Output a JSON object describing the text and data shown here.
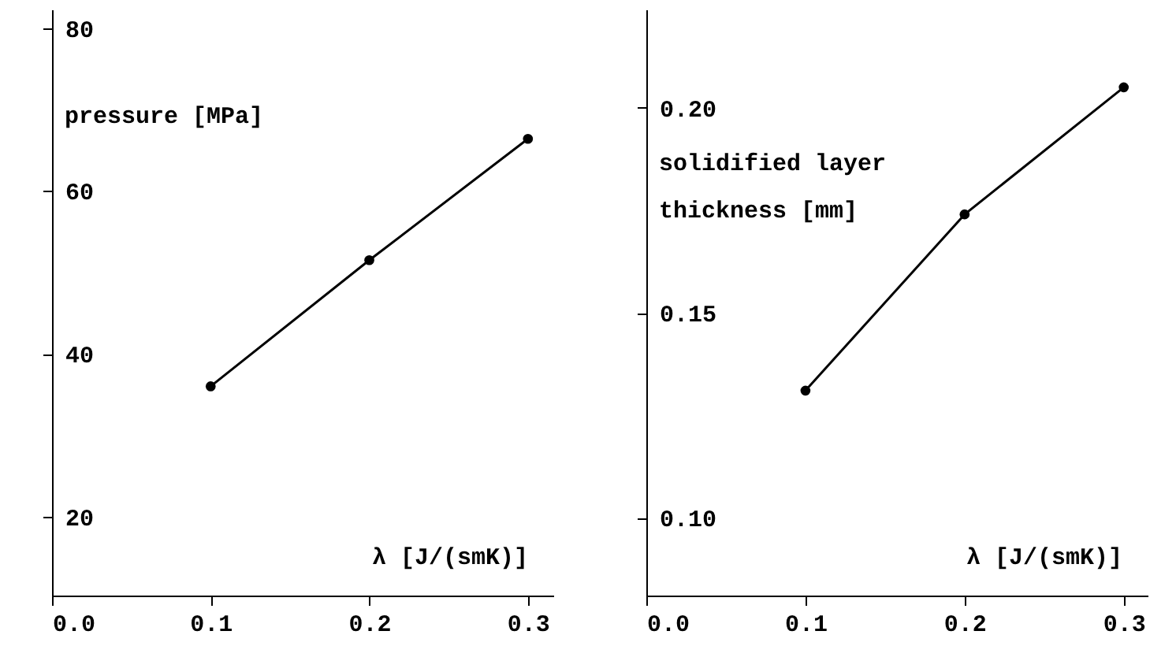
{
  "chart_data": [
    {
      "type": "line",
      "xlabel": "λ [J/(smK)]",
      "ylabel": "pressure [MPa]",
      "x": [
        0.1,
        0.2,
        0.3
      ],
      "values": [
        36,
        51.5,
        66.4
      ],
      "color": "#000000",
      "marker": "circle",
      "line_style": "solid",
      "xlim": [
        0,
        0.316
      ],
      "xticks": [
        {
          "value": 0,
          "label": "0.0"
        },
        0.1,
        0.2,
        0.3
      ],
      "ylim": [
        10.3,
        82.3
      ],
      "yticks": [
        20,
        40,
        60,
        80
      ],
      "grid": false
    },
    {
      "type": "line",
      "xlabel": "λ [J/(smK)]",
      "ylabel": "solidified layer thickness [mm]",
      "x": [
        0.1,
        0.2,
        0.3
      ],
      "values": [
        0.131,
        0.174,
        0.205
      ],
      "color": "#000000",
      "marker": "circle",
      "line_style": "solid",
      "xlim": [
        0,
        0.315
      ],
      "xticks": [
        {
          "value": 0,
          "label": "0.0"
        },
        0.1,
        0.2,
        0.3
      ],
      "ylim": [
        0.081,
        0.224
      ],
      "yticks": [
        {
          "value": 0.1,
          "label": "0.10"
        },
        0.15,
        {
          "value": 0.2,
          "label": "0.20"
        }
      ],
      "grid": false
    }
  ]
}
